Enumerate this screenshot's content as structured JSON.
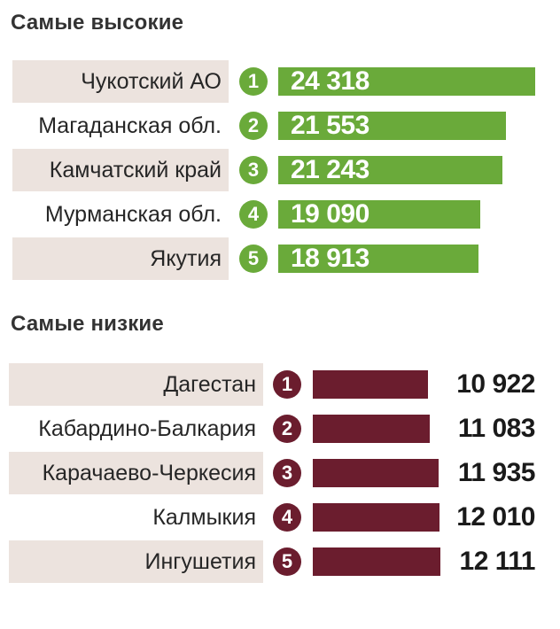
{
  "chart_data": [
    {
      "type": "bar",
      "title": "Самые высокие",
      "color": "#6aaa3a",
      "categories": [
        "Чукотский АО",
        "Магаданская обл.",
        "Камчатский край",
        "Мурманская обл.",
        "Якутия"
      ],
      "ranks": [
        "1",
        "2",
        "3",
        "4",
        "5"
      ],
      "values": [
        24318,
        21553,
        21243,
        19090,
        18913
      ],
      "value_labels": [
        "24 318",
        "21 553",
        "21 243",
        "19 090",
        "18 913"
      ]
    },
    {
      "type": "bar",
      "title": "Самые низкие",
      "color": "#6b1d2e",
      "categories": [
        "Дагестан",
        "Кабардино-Балкария",
        "Карачаево-Черкесия",
        "Калмыкия",
        "Ингушетия"
      ],
      "ranks": [
        "1",
        "2",
        "3",
        "4",
        "5"
      ],
      "values": [
        10922,
        11083,
        11935,
        12010,
        12111
      ],
      "value_labels": [
        "10 922",
        "11 083",
        "11 935",
        "12 010",
        "12 111"
      ]
    }
  ]
}
